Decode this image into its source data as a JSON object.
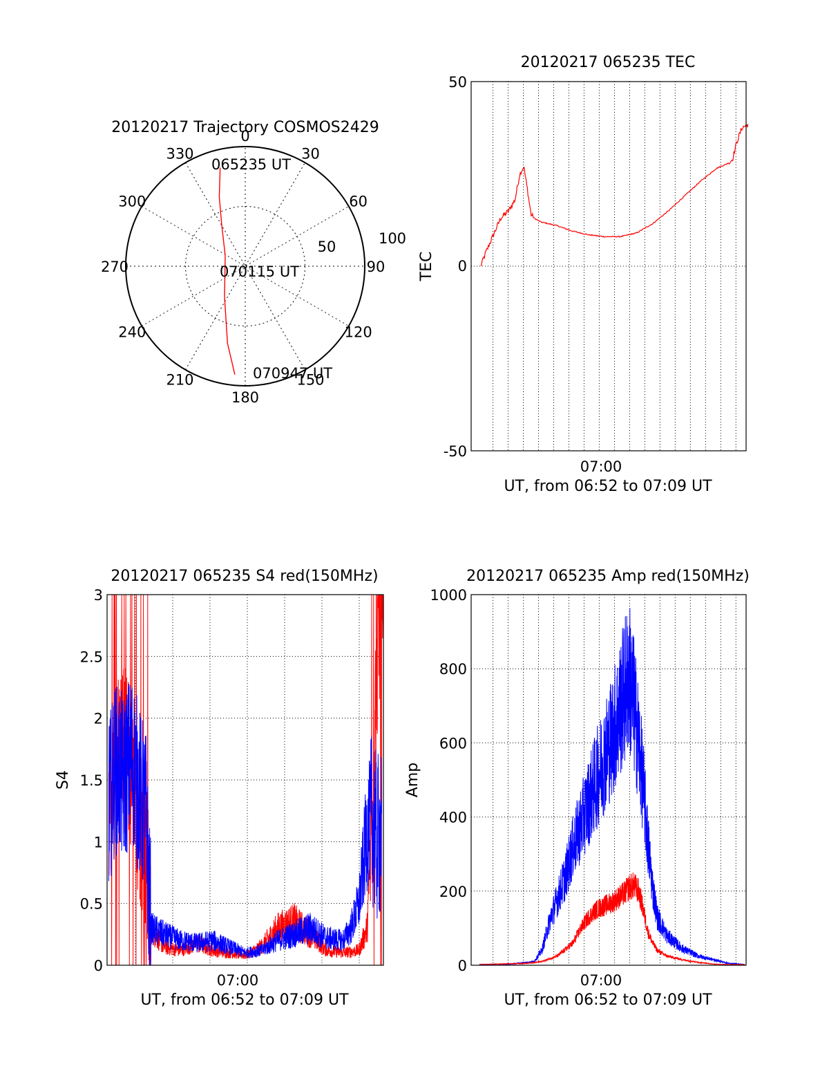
{
  "chart_data": [
    {
      "type": "polar",
      "title": "20120217 Trajectory COSMOS2429",
      "azimuth_labels": [
        "0",
        "30",
        "60",
        "90",
        "120",
        "150",
        "180",
        "210",
        "240",
        "270",
        "300",
        "330"
      ],
      "radial_labels": [
        "50",
        "100"
      ],
      "rlim": [
        0,
        100
      ],
      "grid": true,
      "series": [
        {
          "color": "#ff0000",
          "points": [
            {
              "az": 345.7,
              "r": 85
            },
            {
              "az": 339.5,
              "r": 62
            },
            {
              "az": 330.5,
              "r": 40
            },
            {
              "az": 298,
              "r": 19
            },
            {
              "az": 214,
              "r": 31
            },
            {
              "az": 193,
              "r": 66
            },
            {
              "az": 185.5,
              "r": 91
            }
          ]
        }
      ],
      "annotations": [
        "065235 UT",
        "070115 UT",
        "070947 UT"
      ]
    },
    {
      "type": "line",
      "title": "20120217 065235 TEC",
      "ylabel": "TEC",
      "xlabel": "UT, from 06:52 to 07:09 UT",
      "ylim": [
        -50,
        50
      ],
      "yticks": [
        "50",
        "0",
        "-50"
      ],
      "xtick_label": "07:00",
      "grid": true,
      "series": [
        {
          "color": "#ff0000",
          "x_minutes": [
            0.25,
            0.6,
            1.0,
            1.5,
            2.0,
            2.4,
            2.7,
            2.95,
            3.2,
            3.4,
            3.6,
            4.0,
            5.0,
            6.0,
            7.0,
            8.0,
            8.5,
            9.0,
            10.0,
            11.0,
            12.0,
            13.0,
            14.0,
            15.0,
            15.8,
            16.0,
            16.3,
            16.6,
            16.8,
            17.0
          ],
          "y": [
            0,
            4,
            8,
            13,
            15,
            18,
            25,
            27,
            20,
            14,
            13,
            12,
            11,
            9.5,
            8.5,
            8,
            8,
            8,
            9,
            11.5,
            15,
            19,
            23,
            26.5,
            28,
            29,
            34,
            37.5,
            38,
            38.5
          ]
        }
      ]
    },
    {
      "type": "line",
      "title": "20120217 065235 S4 red(150MHz)",
      "ylabel": "S4",
      "xlabel": "UT, from 06:52 to 07:09 UT",
      "ylim": [
        0,
        3
      ],
      "yticks": [
        "0",
        "0.5",
        "1",
        "1.5",
        "2",
        "2.5",
        "3"
      ],
      "xtick_label": "07:00",
      "grid": true,
      "series": [
        {
          "color": "#ff0000",
          "x_minutes": [
            0.1,
            0.5,
            1.0,
            1.5,
            2.0,
            2.4,
            2.6,
            2.7,
            3.5,
            4.5,
            5.5,
            6.5,
            7.5,
            8.5,
            9.5,
            10.5,
            11.5,
            12.5,
            13.5,
            14.5,
            15.5,
            16.0,
            16.4,
            16.6,
            16.8,
            17.0
          ],
          "y": [
            1.2,
            1.7,
            1.8,
            1.5,
            1.2,
            0.9,
            0.4,
            0.3,
            0.15,
            0.12,
            0.18,
            0.12,
            0.1,
            0.08,
            0.15,
            0.3,
            0.35,
            0.25,
            0.12,
            0.1,
            0.12,
            0.3,
            1.5,
            2.5,
            2.8,
            2.5
          ]
        },
        {
          "color": "#0000ff",
          "x_minutes": [
            0.1,
            0.5,
            1.0,
            1.5,
            2.0,
            2.4,
            2.6,
            2.7,
            3.5,
            4.5,
            5.5,
            6.5,
            7.5,
            8.5,
            9.5,
            10.5,
            11.5,
            12.5,
            13.5,
            14.5,
            15.0,
            15.5,
            16.0,
            16.3,
            16.6,
            16.9
          ],
          "y": [
            1.3,
            1.6,
            1.5,
            1.7,
            1.4,
            1.2,
            0.5,
            0.3,
            0.25,
            0.2,
            0.18,
            0.2,
            0.15,
            0.1,
            0.12,
            0.2,
            0.25,
            0.3,
            0.22,
            0.2,
            0.3,
            0.5,
            1.1,
            1.2,
            1.0,
            1.1
          ]
        }
      ]
    },
    {
      "type": "line",
      "title": "20120217 065235 Amp red(150MHz)",
      "ylabel": "Amp",
      "xlabel": "UT, from 06:52 to 07:09 UT",
      "ylim": [
        0,
        1000
      ],
      "yticks": [
        "0",
        "200",
        "400",
        "600",
        "800",
        "1000"
      ],
      "xtick_label": "07:00",
      "grid": true,
      "series": [
        {
          "color": "#0000ff",
          "x_minutes": [
            0,
            2,
            3.5,
            4.0,
            4.5,
            5.0,
            5.5,
            6.0,
            6.5,
            7.0,
            7.5,
            8.0,
            8.5,
            9.0,
            9.3,
            9.6,
            9.9,
            10.2,
            10.5,
            10.8,
            11.1,
            11.4,
            12.0,
            13.0,
            14.0,
            15.0,
            16.0,
            17.0
          ],
          "y": [
            2,
            3,
            10,
            40,
            120,
            180,
            240,
            320,
            380,
            440,
            500,
            560,
            620,
            690,
            740,
            780,
            700,
            600,
            480,
            330,
            210,
            130,
            80,
            45,
            25,
            15,
            5,
            2
          ]
        },
        {
          "color": "#ff0000",
          "x_minutes": [
            0,
            3,
            4,
            5,
            6,
            6.5,
            7,
            7.5,
            8,
            8.5,
            9,
            9.3,
            9.6,
            9.9,
            10.2,
            10.5,
            10.8,
            11.1,
            11.4,
            12,
            13,
            14,
            15,
            16,
            17
          ],
          "y": [
            2,
            5,
            10,
            25,
            60,
            100,
            130,
            150,
            160,
            170,
            185,
            195,
            210,
            215,
            200,
            150,
            90,
            60,
            40,
            25,
            15,
            8,
            3,
            2,
            2
          ]
        }
      ]
    }
  ]
}
